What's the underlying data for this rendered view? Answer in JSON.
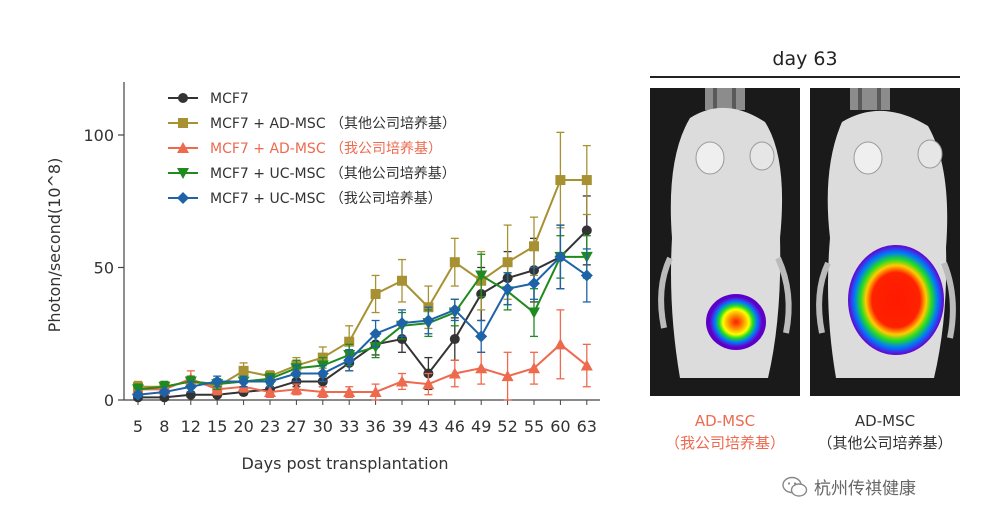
{
  "chart_data": {
    "type": "line",
    "x": [
      5,
      8,
      12,
      15,
      20,
      23,
      27,
      30,
      33,
      36,
      39,
      43,
      46,
      49,
      52,
      55,
      60,
      63
    ],
    "xlabel": "Days post transplantation",
    "ylabel": "Photon/second(10^8)",
    "ylim": [
      0,
      120
    ],
    "yticks": [
      0,
      50,
      100
    ],
    "legend": "top-left",
    "series": [
      {
        "name": "MCF7",
        "color": "#333333",
        "marker": "circle",
        "values": [
          1,
          1,
          2,
          2,
          3,
          4,
          7,
          7,
          14,
          21,
          23,
          10,
          23,
          40,
          46,
          49,
          54,
          64
        ],
        "errors": [
          1,
          1,
          1,
          1,
          1,
          1,
          2,
          2,
          3,
          4,
          5,
          6,
          8,
          10,
          10,
          12,
          12,
          13
        ]
      },
      {
        "name": "MCF7 + AD-MSC （其他公司培养基）",
        "color": "#a89132",
        "marker": "square",
        "values": [
          5,
          5,
          7,
          5,
          11,
          9,
          13,
          16,
          22,
          40,
          45,
          35,
          52,
          45,
          52,
          58,
          83,
          83
        ],
        "errors": [
          2,
          2,
          2,
          2,
          3,
          2,
          3,
          4,
          6,
          7,
          8,
          8,
          9,
          11,
          14,
          11,
          18,
          13
        ]
      },
      {
        "name": "MCF7 + AD-MSC （我公司培养基）",
        "color": "#ee6a4f",
        "marker": "triangle-up",
        "values": [
          4,
          4,
          8,
          4,
          5,
          3,
          4,
          3,
          3,
          3,
          7,
          6,
          10,
          12,
          9,
          12,
          21,
          13
        ],
        "errors": [
          2,
          2,
          3,
          2,
          2,
          2,
          2,
          2,
          2,
          3,
          3,
          4,
          5,
          6,
          9,
          6,
          13,
          8
        ]
      },
      {
        "name": "MCF7 + UC-MSC （其他公司培养基）",
        "color": "#1f8a1f",
        "marker": "triangle-down",
        "values": [
          4,
          5,
          7,
          6,
          7,
          8,
          12,
          13,
          17,
          20,
          28,
          29,
          33,
          47,
          41,
          33,
          54,
          54
        ],
        "errors": [
          2,
          2,
          2,
          2,
          2,
          2,
          3,
          3,
          4,
          4,
          5,
          5,
          5,
          8,
          7,
          9,
          8,
          8
        ]
      },
      {
        "name": "MCF7 + UC-MSC （我公司培养基）",
        "color": "#1e63a8",
        "marker": "diamond",
        "values": [
          2,
          3,
          5,
          7,
          7,
          7,
          10,
          10,
          15,
          25,
          29,
          30,
          34,
          24,
          42,
          44,
          54,
          47
        ],
        "errors": [
          1,
          1,
          2,
          2,
          2,
          2,
          3,
          3,
          4,
          5,
          5,
          5,
          4,
          6,
          6,
          6,
          12,
          10
        ]
      }
    ]
  },
  "panel": {
    "title": "day 63",
    "images": [
      {
        "caption_line1": "AD-MSC",
        "caption_line2": "（我公司培养基）",
        "caption_color": "#ee6a4f"
      },
      {
        "caption_line1": "AD-MSC",
        "caption_line2": "（其他公司培养基）",
        "caption_color": "#333333"
      }
    ]
  },
  "watermark": {
    "text": "杭州传祺健康",
    "icon": "wechat-icon"
  }
}
